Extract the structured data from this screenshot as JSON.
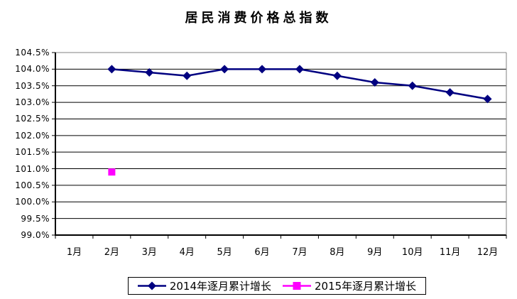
{
  "title": "居民消费价格总指数",
  "colors": {
    "series_2014": "#000080",
    "series_2015": "#FF00FF",
    "gridline": "#000000",
    "axis": "#000000",
    "plot_border": "#808080",
    "background": "#FFFFFF",
    "text": "#000000"
  },
  "chart_data": {
    "type": "line",
    "title": "居民消费价格总指数",
    "categories": [
      "1月",
      "2月",
      "3月",
      "4月",
      "5月",
      "6月",
      "7月",
      "8月",
      "9月",
      "10月",
      "11月",
      "12月"
    ],
    "y_tick_labels": [
      "104.5%",
      "104.0%",
      "103.5%",
      "103.0%",
      "102.5%",
      "102.0%",
      "101.5%",
      "101.0%",
      "100.5%",
      "100.0%",
      "99.5%",
      "99.0%"
    ],
    "ylim": [
      99.0,
      104.5
    ],
    "y_step": 0.5,
    "grid": true,
    "legend_position": "bottom",
    "series": [
      {
        "name": "2014年逐月累计增长",
        "marker": "diamond",
        "color": "#000080",
        "values": [
          null,
          104.0,
          103.9,
          103.8,
          104.0,
          104.0,
          104.0,
          103.8,
          103.6,
          103.5,
          103.3,
          103.1
        ]
      },
      {
        "name": "2015年逐月累计增长",
        "marker": "square",
        "color": "#FF00FF",
        "values": [
          null,
          100.9,
          null,
          null,
          null,
          null,
          null,
          null,
          null,
          null,
          null,
          null
        ]
      }
    ]
  }
}
